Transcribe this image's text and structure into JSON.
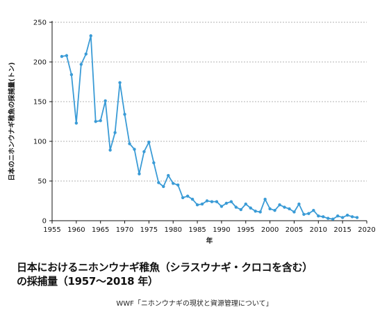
{
  "chart_data": {
    "type": "line",
    "title": "",
    "xlabel": "年",
    "ylabel": "日本のニホンウナギ稚魚の採捕量(トン)",
    "xlim": [
      1955,
      2020
    ],
    "ylim": [
      0,
      250
    ],
    "x_ticks": [
      "1955",
      "1960",
      "1965",
      "1970",
      "1975",
      "1980",
      "1985",
      "1990",
      "1995",
      "2000",
      "2005",
      "2010",
      "2015",
      "2020"
    ],
    "y_ticks": [
      "0",
      "50",
      "100",
      "150",
      "200",
      "250"
    ],
    "grid": "horizontal-dashed",
    "series": [
      {
        "color": "#3a9bd6",
        "x": [
          1957,
          1958,
          1959,
          1960,
          1961,
          1962,
          1963,
          1964,
          1965,
          1966,
          1967,
          1968,
          1969,
          1970,
          1971,
          1972,
          1973,
          1974,
          1975,
          1976,
          1977,
          1978,
          1979,
          1980,
          1981,
          1982,
          1983,
          1984,
          1985,
          1986,
          1987,
          1988,
          1989,
          1990,
          1991,
          1992,
          1993,
          1994,
          1995,
          1996,
          1997,
          1998,
          1999,
          2000,
          2001,
          2002,
          2003,
          2004,
          2005,
          2006,
          2007,
          2008,
          2009,
          2010,
          2011,
          2012,
          2013,
          2014,
          2015,
          2016,
          2017,
          2018
        ],
        "values": [
          207,
          208,
          184,
          123,
          197,
          210,
          233,
          125,
          126,
          151,
          89,
          111,
          174,
          134,
          97,
          90,
          59,
          87,
          99,
          73,
          48,
          43,
          57,
          47,
          45,
          29,
          31,
          27,
          20,
          21,
          25,
          24,
          24,
          18,
          22,
          24,
          17,
          14,
          21,
          16,
          12,
          11,
          27,
          15,
          13,
          20,
          17,
          15,
          11,
          21,
          8,
          9,
          13,
          6,
          5,
          3,
          2,
          6,
          4,
          7,
          5,
          4
        ]
      }
    ]
  },
  "caption": {
    "line1": "日本におけるニホンウナギ稚魚（シラスウナギ・クロコを含む）",
    "line2": "の採捕量（1957〜2018 年）",
    "source": "WWF「ニホンウナギの現状と資源管理について」"
  }
}
